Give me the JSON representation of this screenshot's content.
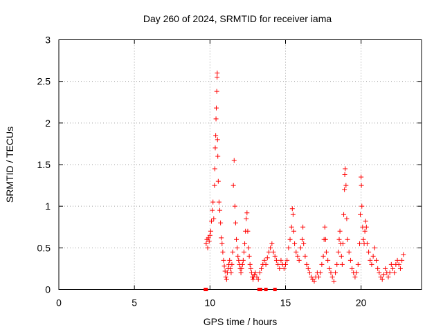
{
  "chart_data": {
    "type": "scatter",
    "title": "Day 260 of 2024, SRMTID for receiver iama",
    "xlabel": "GPS time / hours",
    "ylabel": "SRMTID / TECUs",
    "xlim": [
      0,
      24
    ],
    "ylim": [
      0,
      3
    ],
    "xticks": [
      "0",
      "5",
      "10",
      "15",
      "20"
    ],
    "yticks": [
      "0",
      "0.5",
      "1",
      "1.5",
      "2",
      "2.5",
      "3"
    ],
    "grid": true,
    "marker": "+",
    "marker_color": "#ff0000",
    "series": [
      {
        "points": [
          [
            9.75,
            0.55
          ],
          [
            9.8,
            0.6
          ],
          [
            9.85,
            0.5
          ],
          [
            9.9,
            0.62
          ],
          [
            9.95,
            0.58
          ],
          [
            10.0,
            0.65
          ],
          [
            10.05,
            0.7
          ],
          [
            10.1,
            0.82
          ],
          [
            10.15,
            0.95
          ],
          [
            10.2,
            1.05
          ],
          [
            10.25,
            0.85
          ],
          [
            10.3,
            1.25
          ],
          [
            10.32,
            1.45
          ],
          [
            10.35,
            1.7
          ],
          [
            10.38,
            1.85
          ],
          [
            10.4,
            2.05
          ],
          [
            10.42,
            2.18
          ],
          [
            10.45,
            2.38
          ],
          [
            10.47,
            2.55
          ],
          [
            10.48,
            2.6
          ],
          [
            10.5,
            1.8
          ],
          [
            10.52,
            1.6
          ],
          [
            10.55,
            1.3
          ],
          [
            10.6,
            1.05
          ],
          [
            10.65,
            0.95
          ],
          [
            10.7,
            0.8
          ],
          [
            10.75,
            0.62
          ],
          [
            10.8,
            0.55
          ],
          [
            10.85,
            0.45
          ],
          [
            10.9,
            0.35
          ],
          [
            10.95,
            0.28
          ],
          [
            11.0,
            0.22
          ],
          [
            11.05,
            0.15
          ],
          [
            11.1,
            0.12
          ],
          [
            11.15,
            0.2
          ],
          [
            11.2,
            0.25
          ],
          [
            11.25,
            0.3
          ],
          [
            11.3,
            0.35
          ],
          [
            11.35,
            0.25
          ],
          [
            11.4,
            0.2
          ],
          [
            11.45,
            0.3
          ],
          [
            11.5,
            0.45
          ],
          [
            11.55,
            1.25
          ],
          [
            11.6,
            1.55
          ],
          [
            11.65,
            1.0
          ],
          [
            11.7,
            0.8
          ],
          [
            11.75,
            0.6
          ],
          [
            11.8,
            0.5
          ],
          [
            11.85,
            0.4
          ],
          [
            11.9,
            0.35
          ],
          [
            11.95,
            0.3
          ],
          [
            12.0,
            0.25
          ],
          [
            12.05,
            0.2
          ],
          [
            12.1,
            0.25
          ],
          [
            12.15,
            0.3
          ],
          [
            12.2,
            0.35
          ],
          [
            12.25,
            0.45
          ],
          [
            12.3,
            0.55
          ],
          [
            12.35,
            0.7
          ],
          [
            12.4,
            0.85
          ],
          [
            12.45,
            0.92
          ],
          [
            12.5,
            0.7
          ],
          [
            12.55,
            0.5
          ],
          [
            12.6,
            0.4
          ],
          [
            12.65,
            0.3
          ],
          [
            12.7,
            0.25
          ],
          [
            12.75,
            0.2
          ],
          [
            12.8,
            0.15
          ],
          [
            12.85,
            0.12
          ],
          [
            12.9,
            0.15
          ],
          [
            12.95,
            0.18
          ],
          [
            13.0,
            0.2
          ],
          [
            13.1,
            0.15
          ],
          [
            13.2,
            0.12
          ],
          [
            13.3,
            0.2
          ],
          [
            13.4,
            0.25
          ],
          [
            13.5,
            0.3
          ],
          [
            13.6,
            0.35
          ],
          [
            13.7,
            0.3
          ],
          [
            13.8,
            0.38
          ],
          [
            13.9,
            0.45
          ],
          [
            14.0,
            0.5
          ],
          [
            14.1,
            0.55
          ],
          [
            14.2,
            0.45
          ],
          [
            14.3,
            0.4
          ],
          [
            14.4,
            0.35
          ],
          [
            14.5,
            0.3
          ],
          [
            14.6,
            0.25
          ],
          [
            14.7,
            0.35
          ],
          [
            14.8,
            0.3
          ],
          [
            14.9,
            0.25
          ],
          [
            15.0,
            0.3
          ],
          [
            15.1,
            0.35
          ],
          [
            15.2,
            0.5
          ],
          [
            15.3,
            0.6
          ],
          [
            15.4,
            0.75
          ],
          [
            15.45,
            0.97
          ],
          [
            15.5,
            0.9
          ],
          [
            15.55,
            0.7
          ],
          [
            15.6,
            0.55
          ],
          [
            15.7,
            0.45
          ],
          [
            15.8,
            0.4
          ],
          [
            15.9,
            0.35
          ],
          [
            16.0,
            0.5
          ],
          [
            16.1,
            0.6
          ],
          [
            16.15,
            0.75
          ],
          [
            16.2,
            0.55
          ],
          [
            16.3,
            0.4
          ],
          [
            16.4,
            0.3
          ],
          [
            16.5,
            0.25
          ],
          [
            16.6,
            0.2
          ],
          [
            16.7,
            0.15
          ],
          [
            16.8,
            0.12
          ],
          [
            16.9,
            0.1
          ],
          [
            17.0,
            0.15
          ],
          [
            17.1,
            0.2
          ],
          [
            17.2,
            0.15
          ],
          [
            17.3,
            0.2
          ],
          [
            17.4,
            0.3
          ],
          [
            17.5,
            0.4
          ],
          [
            17.55,
            0.6
          ],
          [
            17.6,
            0.75
          ],
          [
            17.65,
            0.6
          ],
          [
            17.7,
            0.45
          ],
          [
            17.8,
            0.35
          ],
          [
            17.9,
            0.25
          ],
          [
            18.0,
            0.2
          ],
          [
            18.1,
            0.15
          ],
          [
            18.2,
            0.1
          ],
          [
            18.3,
            0.2
          ],
          [
            18.4,
            0.3
          ],
          [
            18.5,
            0.45
          ],
          [
            18.55,
            0.6
          ],
          [
            18.6,
            0.7
          ],
          [
            18.65,
            0.55
          ],
          [
            18.7,
            0.4
          ],
          [
            18.75,
            0.3
          ],
          [
            18.8,
            0.55
          ],
          [
            18.85,
            0.9
          ],
          [
            18.9,
            1.2
          ],
          [
            18.92,
            1.38
          ],
          [
            18.95,
            1.45
          ],
          [
            19.0,
            1.25
          ],
          [
            19.05,
            0.85
          ],
          [
            19.1,
            0.6
          ],
          [
            19.2,
            0.45
          ],
          [
            19.3,
            0.35
          ],
          [
            19.4,
            0.25
          ],
          [
            19.5,
            0.2
          ],
          [
            19.6,
            0.15
          ],
          [
            19.7,
            0.2
          ],
          [
            19.8,
            0.3
          ],
          [
            19.9,
            0.55
          ],
          [
            19.95,
            0.9
          ],
          [
            20.0,
            1.35
          ],
          [
            20.02,
            1.25
          ],
          [
            20.05,
            1.0
          ],
          [
            20.1,
            0.75
          ],
          [
            20.15,
            0.6
          ],
          [
            20.2,
            0.55
          ],
          [
            20.25,
            0.7
          ],
          [
            20.3,
            0.82
          ],
          [
            20.35,
            0.75
          ],
          [
            20.4,
            0.55
          ],
          [
            20.5,
            0.45
          ],
          [
            20.6,
            0.35
          ],
          [
            20.7,
            0.3
          ],
          [
            20.8,
            0.4
          ],
          [
            20.9,
            0.5
          ],
          [
            21.0,
            0.35
          ],
          [
            21.1,
            0.25
          ],
          [
            21.2,
            0.2
          ],
          [
            21.3,
            0.15
          ],
          [
            21.4,
            0.12
          ],
          [
            21.5,
            0.18
          ],
          [
            21.6,
            0.25
          ],
          [
            21.7,
            0.2
          ],
          [
            21.8,
            0.15
          ],
          [
            21.9,
            0.2
          ],
          [
            22.0,
            0.3
          ],
          [
            22.1,
            0.25
          ],
          [
            22.2,
            0.2
          ],
          [
            22.3,
            0.3
          ],
          [
            22.4,
            0.35
          ],
          [
            22.5,
            0.3
          ],
          [
            22.6,
            0.25
          ],
          [
            22.7,
            0.35
          ],
          [
            22.8,
            0.42
          ]
        ]
      }
    ],
    "bottom_markers": [
      9.7,
      9.75,
      13.25,
      13.3,
      13.35,
      13.7,
      14.3
    ],
    "bottom_marker_color": "#ff0000"
  }
}
